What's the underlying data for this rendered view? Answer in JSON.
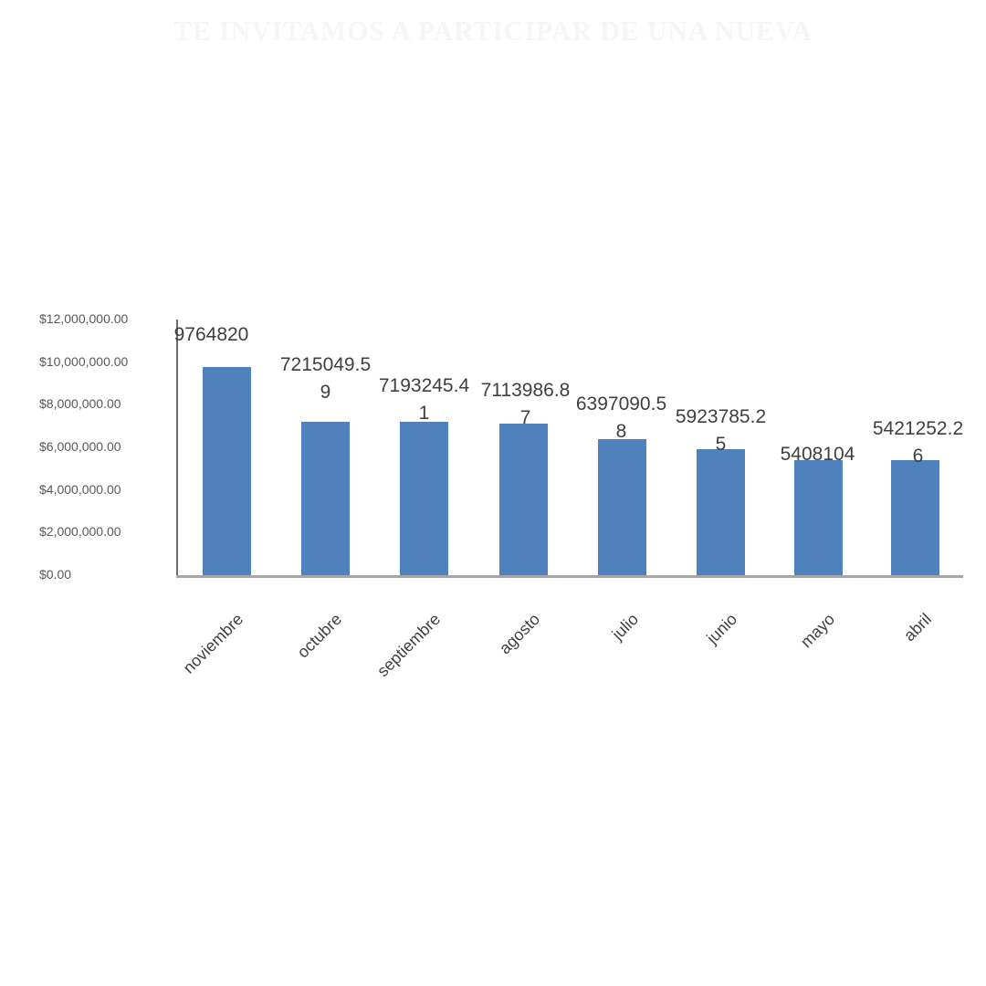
{
  "page": {
    "title": "TE INVITAMOS A PARTICIPAR DE UNA NUEVA",
    "background": "#ffffff"
  },
  "chart_data": {
    "type": "bar",
    "title": "",
    "xlabel": "",
    "ylabel": "",
    "categories": [
      "noviembre",
      "octubre",
      "septiembre",
      "agosto",
      "julio",
      "junio",
      "mayo",
      "abril"
    ],
    "values": [
      9764820,
      7215049.59,
      7193245.41,
      7113986.87,
      6397090.58,
      5923785.25,
      5408104,
      5421252.26
    ],
    "data_labels": [
      [
        "9764820"
      ],
      [
        "7215049.5",
        "9"
      ],
      [
        "7193245.4",
        "1"
      ],
      [
        "7113986.8",
        "7"
      ],
      [
        "6397090.5",
        "8"
      ],
      [
        "5923785.2",
        "5"
      ],
      [
        "5408104"
      ],
      [
        "5421252.2",
        "6"
      ]
    ],
    "y_ticks": [
      "$12,000,000.00",
      "$10,000,000.00",
      "$8,000,000.00",
      "$6,000,000.00",
      "$4,000,000.00",
      "$2,000,000.00",
      "$0.00"
    ],
    "y_tick_values": [
      12000000,
      10000000,
      8000000,
      6000000,
      4000000,
      2000000,
      0
    ],
    "ylim": [
      0,
      12000000
    ],
    "bar_color": "#4f81bd",
    "axis_color_vertical": "#6e6e6e",
    "axis_color_horizontal": "#a6a6a6",
    "grid": false,
    "legend": false
  }
}
